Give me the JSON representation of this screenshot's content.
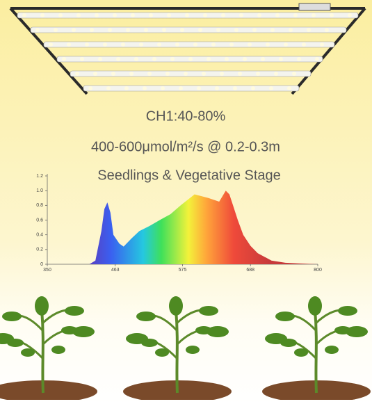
{
  "header": {
    "channel": "CH1:40-80%",
    "ppfd": "400-600μmol/m²/s @ 0.2-0.3m",
    "stage": "Seedlings & Vegetative Stage"
  },
  "chart_data": {
    "type": "area",
    "x": [
      420,
      430,
      440,
      445,
      450,
      455,
      460,
      470,
      477,
      490,
      503,
      520,
      537,
      555,
      572,
      595,
      618,
      636,
      647,
      653,
      659,
      667,
      676,
      688,
      700,
      723,
      746,
      769,
      800
    ],
    "values": [
      0,
      0.05,
      0.45,
      0.75,
      0.84,
      0.7,
      0.4,
      0.28,
      0.24,
      0.35,
      0.45,
      0.52,
      0.6,
      0.68,
      0.8,
      0.95,
      0.9,
      0.85,
      1.0,
      0.95,
      0.8,
      0.6,
      0.4,
      0.25,
      0.15,
      0.05,
      0.02,
      0.01,
      0
    ],
    "xlim": [
      350,
      800
    ],
    "xticks": [
      350,
      463,
      575,
      688,
      800
    ],
    "ylim": [
      0,
      1.2
    ],
    "yticks": [
      0,
      0.2,
      0.4,
      0.6,
      0.8,
      {
        "value": 1,
        "label": "1.0"
      },
      1.2
    ]
  }
}
